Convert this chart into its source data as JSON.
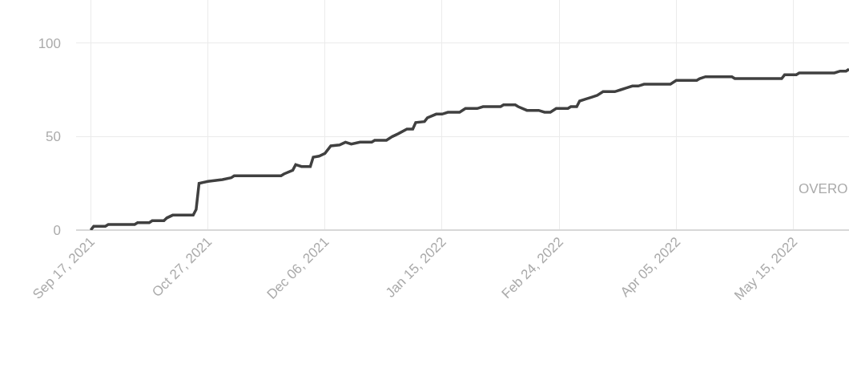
{
  "chart_data": {
    "type": "line",
    "x": [
      "2021-09-17",
      "2021-09-18",
      "2021-09-22",
      "2021-09-23",
      "2021-10-02",
      "2021-10-03",
      "2021-10-07",
      "2021-10-08",
      "2021-10-12",
      "2021-10-13",
      "2021-10-15",
      "2021-10-22",
      "2021-10-23",
      "2021-10-24",
      "2021-10-27",
      "2021-11-01",
      "2021-11-04",
      "2021-11-05",
      "2021-11-21",
      "2021-11-22",
      "2021-11-25",
      "2021-11-26",
      "2021-11-28",
      "2021-12-01",
      "2021-12-02",
      "2021-12-04",
      "2021-12-06",
      "2021-12-08",
      "2021-12-11",
      "2021-12-13",
      "2021-12-15",
      "2021-12-18",
      "2021-12-22",
      "2021-12-23",
      "2021-12-27",
      "2021-12-29",
      "2021-12-31",
      "2022-01-03",
      "2022-01-05",
      "2022-01-06",
      "2022-01-09",
      "2022-01-10",
      "2022-01-13",
      "2022-01-15",
      "2022-01-17",
      "2022-01-21",
      "2022-01-23",
      "2022-01-27",
      "2022-01-29",
      "2022-02-04",
      "2022-02-05",
      "2022-02-09",
      "2022-02-10",
      "2022-02-13",
      "2022-02-17",
      "2022-02-19",
      "2022-02-21",
      "2022-02-23",
      "2022-02-27",
      "2022-02-28",
      "2022-03-02",
      "2022-03-03",
      "2022-03-05",
      "2022-03-07",
      "2022-03-09",
      "2022-03-11",
      "2022-03-15",
      "2022-03-17",
      "2022-03-19",
      "2022-03-21",
      "2022-03-23",
      "2022-03-25",
      "2022-04-03",
      "2022-04-05",
      "2022-04-12",
      "2022-04-13",
      "2022-04-15",
      "2022-04-24",
      "2022-04-25",
      "2022-05-11",
      "2022-05-12",
      "2022-05-16",
      "2022-05-17",
      "2022-05-29",
      "2022-05-31",
      "2022-06-02",
      "2022-06-03"
    ],
    "series": [
      {
        "color": "#404040",
        "values": [
          0,
          2,
          2,
          3,
          3,
          4,
          4,
          5,
          5,
          6.5,
          8,
          8,
          11,
          25,
          26,
          27,
          28,
          29,
          29,
          30,
          32,
          35,
          34,
          34,
          39,
          39.5,
          41,
          45,
          45.5,
          47,
          46,
          47,
          47,
          48,
          48,
          50,
          51.5,
          54,
          54,
          57.5,
          58,
          60,
          62,
          62,
          63,
          63,
          65,
          65,
          66,
          66,
          67,
          67,
          66,
          64,
          64,
          63,
          63,
          65,
          65,
          66,
          66,
          69,
          70,
          71,
          72,
          74,
          74,
          75,
          76,
          77,
          77,
          78,
          78,
          80,
          80,
          81,
          82,
          82,
          81,
          81,
          83,
          83,
          84,
          84,
          85,
          85,
          86
        ]
      }
    ],
    "xlim": [
      "2021-09-12",
      "2022-06-03"
    ],
    "xticks": [
      {
        "value": "2021-09-17",
        "label": "Sep 17, 2021"
      },
      {
        "value": "2021-10-27",
        "label": "Oct 27, 2021"
      },
      {
        "value": "2021-12-06",
        "label": "Dec 06, 2021"
      },
      {
        "value": "2022-01-15",
        "label": "Jan 15, 2022"
      },
      {
        "value": "2022-02-24",
        "label": "Feb 24, 2022"
      },
      {
        "value": "2022-04-05",
        "label": "Apr 05, 2022"
      },
      {
        "value": "2022-05-15",
        "label": "May 15, 2022"
      }
    ],
    "ylim": [
      0,
      123
    ],
    "yticks": [
      0,
      50,
      100
    ],
    "grid": true,
    "marker": "none",
    "line_style": "solid",
    "annotations": [
      "OVERO"
    ]
  }
}
